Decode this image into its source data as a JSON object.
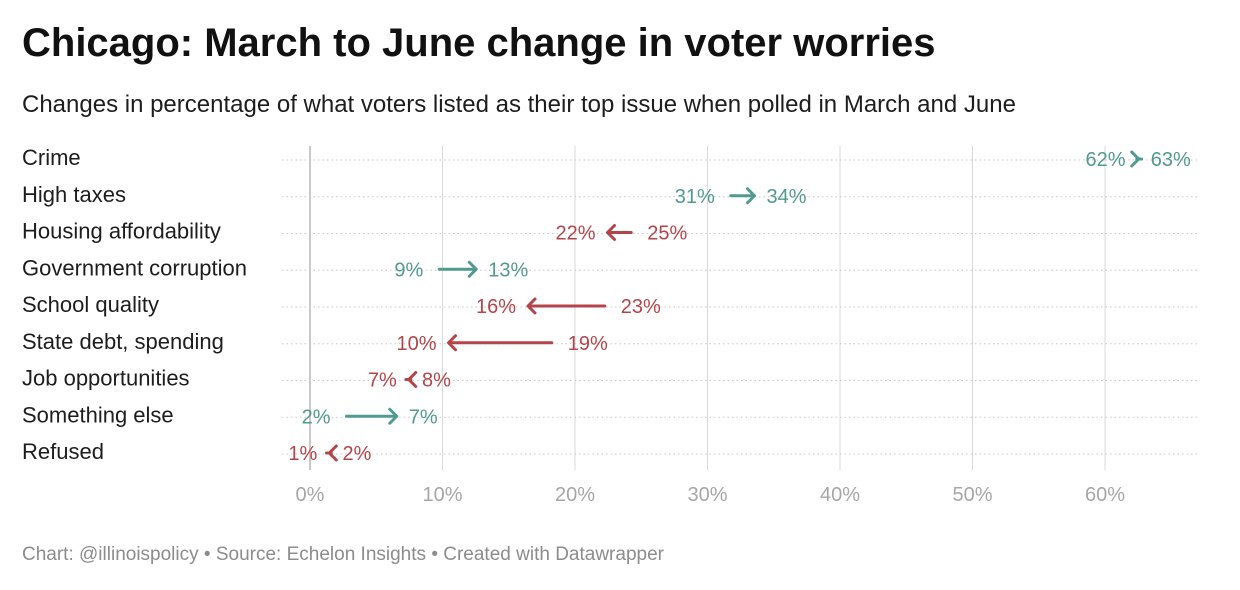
{
  "title": "Chicago: March to June change in voter worries",
  "subtitle": "Changes in percentage of what voters listed as their top issue when polled in March and June",
  "footer": {
    "chart_credit": "Chart: @illinoispolicy",
    "source": "Source: Echelon Insights",
    "created_with": "Created with Datawrapper",
    "separator": "•"
  },
  "colors": {
    "increase": "#519a8f",
    "decrease": "#b5444a",
    "grid": "#d9d9d9",
    "zero_line": "#c9c9c9",
    "tick_text": "#a6a6a6"
  },
  "chart_data": {
    "type": "arrow",
    "value_suffix": "%",
    "series": [
      {
        "name": "March"
      },
      {
        "name": "June"
      }
    ],
    "xlim": [
      0,
      67
    ],
    "xticks": [
      0,
      10,
      20,
      30,
      40,
      50,
      60
    ],
    "xtick_labels": [
      "0%",
      "10%",
      "20%",
      "30%",
      "40%",
      "50%",
      "60%"
    ],
    "grid": true,
    "rows": [
      {
        "label": "Crime",
        "march": 62,
        "june": 63
      },
      {
        "label": "High taxes",
        "march": 31,
        "june": 34
      },
      {
        "label": "Housing affordability",
        "march": 25,
        "june": 22
      },
      {
        "label": "Government corruption",
        "march": 9,
        "june": 13
      },
      {
        "label": "School quality",
        "march": 23,
        "june": 16
      },
      {
        "label": "State debt, spending",
        "march": 19,
        "june": 10
      },
      {
        "label": "Job opportunities",
        "march": 8,
        "june": 7
      },
      {
        "label": "Something else",
        "march": 2,
        "june": 7
      },
      {
        "label": "Refused",
        "march": 2,
        "june": 1
      }
    ]
  }
}
